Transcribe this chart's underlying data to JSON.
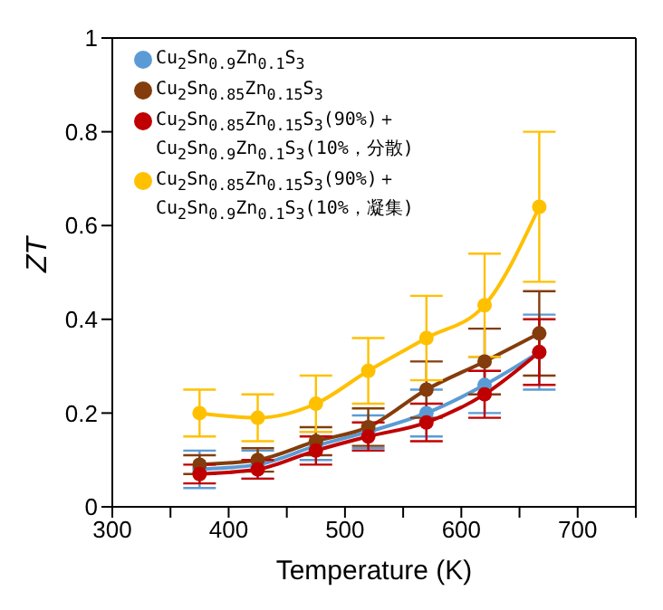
{
  "chart_data": {
    "type": "line",
    "xlabel": "Temperature (K)",
    "ylabel": "ZT",
    "x": [
      375,
      425,
      475,
      520,
      570,
      620,
      667
    ],
    "xlim": [
      300,
      750
    ],
    "xticks": [
      300,
      {
        "value": 350,
        "label": null
      },
      400,
      {
        "value": 450,
        "label": null
      },
      500,
      {
        "value": 550,
        "label": null
      },
      600,
      {
        "value": 650,
        "label": null
      },
      700,
      {
        "value": 750,
        "label": null
      }
    ],
    "ylim": [
      0,
      1
    ],
    "yticks": [
      0,
      0.2,
      0.4,
      0.6,
      0.8,
      1
    ],
    "marker": "circle",
    "line_style": "solid",
    "grid": false,
    "legend": "top left",
    "series": [
      {
        "name": "Cu$_{2}$Sn$_{0.9}$Zn$_{0.1}$S$_{3}$",
        "color": "#5b9bd5",
        "values": [
          0.08,
          0.09,
          0.13,
          0.16,
          0.2,
          0.26,
          0.33
        ],
        "errors": [
          0.04,
          0.03,
          0.03,
          0.035,
          0.05,
          0.06,
          0.08
        ]
      },
      {
        "name": "Cu$_{2}$Sn$_{0.85}$Zn$_{0.15}$S$_{3}$",
        "color": "#843c0c",
        "values": [
          0.09,
          0.1,
          0.14,
          0.17,
          0.25,
          0.31,
          0.37
        ],
        "errors": [
          0.02,
          0.025,
          0.03,
          0.04,
          0.06,
          0.07,
          0.09
        ]
      },
      {
        "name": "Cu$_{2}$Sn$_{0.85}$Zn$_{0.15}$S$_{3}$(90%)＋Cu$_{2}$Sn$_{0.9}$Zn$_{0.1}$S$_{3}$(10%，分散)",
        "color": "#c00000",
        "values": [
          0.07,
          0.08,
          0.12,
          0.15,
          0.18,
          0.24,
          0.33
        ],
        "errors": [
          0.02,
          0.02,
          0.03,
          0.03,
          0.04,
          0.05,
          0.07
        ]
      },
      {
        "name": "Cu$_{2}$Sn$_{0.85}$Zn$_{0.15}$S$_{3}$(90%)＋Cu$_{2}$Sn$_{0.9}$Zn$_{0.1}$S$_{3}$(10%，凝集)",
        "color": "#ffc000",
        "values": [
          0.2,
          0.19,
          0.22,
          0.29,
          0.36,
          0.43,
          0.64
        ],
        "errors": [
          0.05,
          0.05,
          0.06,
          0.07,
          0.09,
          0.11,
          0.16
        ]
      }
    ]
  }
}
